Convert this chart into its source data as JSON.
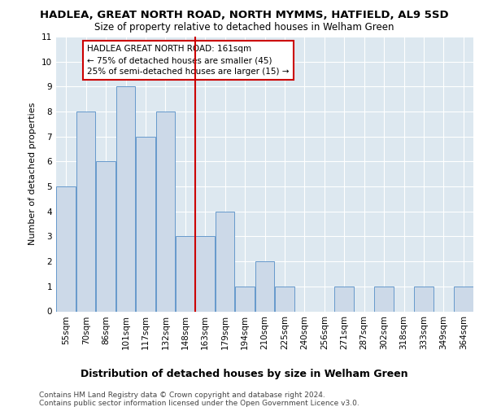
{
  "title": "HADLEA, GREAT NORTH ROAD, NORTH MYMMS, HATFIELD, AL9 5SD",
  "subtitle": "Size of property relative to detached houses in Welham Green",
  "xlabel": "Distribution of detached houses by size in Welham Green",
  "ylabel": "Number of detached properties",
  "categories": [
    "55sqm",
    "70sqm",
    "86sqm",
    "101sqm",
    "117sqm",
    "132sqm",
    "148sqm",
    "163sqm",
    "179sqm",
    "194sqm",
    "210sqm",
    "225sqm",
    "240sqm",
    "256sqm",
    "271sqm",
    "287sqm",
    "302sqm",
    "318sqm",
    "333sqm",
    "349sqm",
    "364sqm"
  ],
  "values": [
    5,
    8,
    6,
    9,
    7,
    8,
    3,
    3,
    4,
    1,
    2,
    1,
    0,
    0,
    1,
    0,
    1,
    0,
    1,
    0,
    1
  ],
  "bar_color": "#ccd9e8",
  "bar_edge_color": "#6699cc",
  "vline_index": 7,
  "vline_color": "#cc0000",
  "ylim": [
    0,
    11
  ],
  "yticks": [
    0,
    1,
    2,
    3,
    4,
    5,
    6,
    7,
    8,
    9,
    10,
    11
  ],
  "annotation_text": "HADLEA GREAT NORTH ROAD: 161sqm\n← 75% of detached houses are smaller (45)\n25% of semi-detached houses are larger (15) →",
  "annotation_box_facecolor": "#ffffff",
  "annotation_box_edgecolor": "#cc0000",
  "footer1": "Contains HM Land Registry data © Crown copyright and database right 2024.",
  "footer2": "Contains public sector information licensed under the Open Government Licence v3.0.",
  "fig_facecolor": "#ffffff",
  "ax_facecolor": "#dde8f0",
  "grid_color": "#ffffff",
  "title_fontsize": 9.5,
  "subtitle_fontsize": 8.5,
  "xlabel_fontsize": 9,
  "ylabel_fontsize": 8,
  "tick_fontsize": 7.5,
  "annotation_fontsize": 7.5,
  "footer_fontsize": 6.5
}
